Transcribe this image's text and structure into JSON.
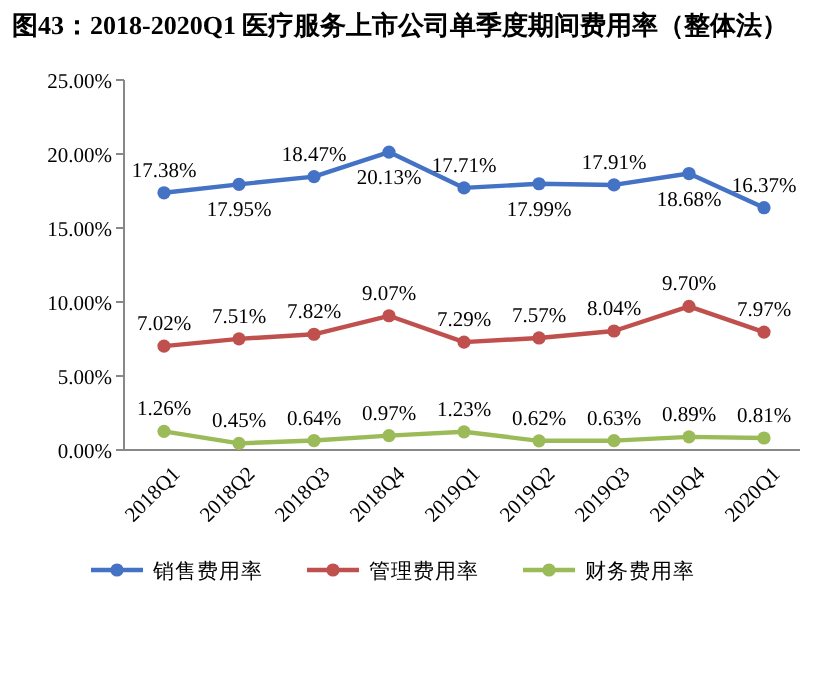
{
  "chart_data": {
    "type": "line",
    "title": "图43：2018-2020Q1 医疗服务上市公司单季度期间费用率（整体法）",
    "categories": [
      "2018Q1",
      "2018Q2",
      "2018Q3",
      "2018Q4",
      "2019Q1",
      "2019Q2",
      "2019Q3",
      "2019Q4",
      "2020Q1"
    ],
    "series": [
      {
        "name": "销售费用率",
        "color": "#4472c4",
        "values": [
          17.38,
          17.95,
          18.47,
          20.13,
          17.71,
          17.99,
          17.91,
          18.68,
          16.37
        ],
        "value_labels": [
          "17.38%",
          "17.95%",
          "18.47%",
          "20.13%",
          "17.71%",
          "17.99%",
          "17.91%",
          "18.68%",
          "16.37%"
        ]
      },
      {
        "name": "管理费用率",
        "color": "#c0504d",
        "values": [
          7.02,
          7.51,
          7.82,
          9.07,
          7.29,
          7.57,
          8.04,
          9.7,
          7.97
        ],
        "value_labels": [
          "7.02%",
          "7.51%",
          "7.82%",
          "9.07%",
          "7.29%",
          "7.57%",
          "8.04%",
          "9.70%",
          "7.97%"
        ]
      },
      {
        "name": "财务费用率",
        "color": "#9bbb59",
        "values": [
          1.26,
          0.45,
          0.64,
          0.97,
          1.23,
          0.62,
          0.63,
          0.89,
          0.81
        ],
        "value_labels": [
          "1.26%",
          "0.45%",
          "0.64%",
          "0.97%",
          "1.23%",
          "0.62%",
          "0.63%",
          "0.89%",
          "0.81%"
        ]
      }
    ],
    "ylim": [
      0,
      25
    ],
    "yticks": [
      {
        "value": 0,
        "label": "0.00%"
      },
      {
        "value": 5,
        "label": "5.00%"
      },
      {
        "value": 10,
        "label": "10.00%"
      },
      {
        "value": 15,
        "label": "15.00%"
      },
      {
        "value": 20,
        "label": "20.00%"
      },
      {
        "value": 25,
        "label": "25.00%"
      }
    ],
    "grid": false,
    "legend": "bottom",
    "marker": "circle",
    "line_style": "solid"
  }
}
